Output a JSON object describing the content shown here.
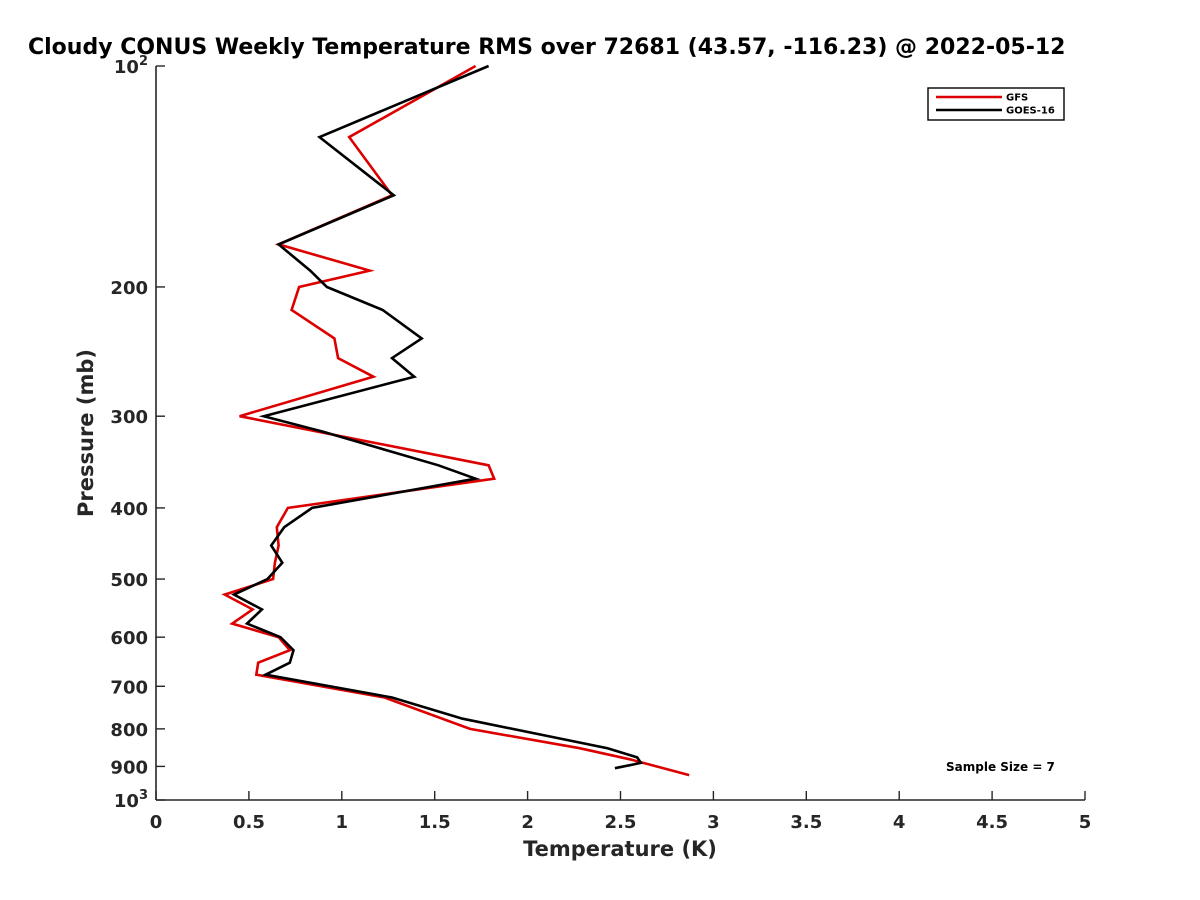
{
  "chart_data": {
    "type": "line",
    "orientation": "vertical-profile",
    "title": "Cloudy CONUS Weekly Temperature RMS over 72681 (43.57, -116.23) @ 2022-05-12",
    "xlabel": "Temperature (K)",
    "ylabel": "Pressure (mb)",
    "xlim": [
      0,
      5
    ],
    "ylim": [
      100,
      1000
    ],
    "yscale": "log",
    "y_reversed": true,
    "xticks": [
      {
        "value": 0,
        "label": "0"
      },
      {
        "value": 0.5,
        "label": "0.5"
      },
      {
        "value": 1,
        "label": "1"
      },
      {
        "value": 1.5,
        "label": "1.5"
      },
      {
        "value": 2,
        "label": "2"
      },
      {
        "value": 2.5,
        "label": "2.5"
      },
      {
        "value": 3,
        "label": "3"
      },
      {
        "value": 3.5,
        "label": "3.5"
      },
      {
        "value": 4,
        "label": "4"
      },
      {
        "value": 4.5,
        "label": "4.5"
      },
      {
        "value": 5,
        "label": "5"
      }
    ],
    "yticks": [
      {
        "value": 100,
        "base": "10",
        "exp": "2"
      },
      {
        "value": 200,
        "label": "200"
      },
      {
        "value": 300,
        "label": "300"
      },
      {
        "value": 400,
        "label": "400"
      },
      {
        "value": 500,
        "label": "500"
      },
      {
        "value": 600,
        "label": "600"
      },
      {
        "value": 700,
        "label": "700"
      },
      {
        "value": 800,
        "label": "800"
      },
      {
        "value": 900,
        "label": "900"
      },
      {
        "value": 1000,
        "base": "10",
        "exp": "3"
      }
    ],
    "grid": false,
    "legend_position": "top-right",
    "annotation": "Sample Size = 7",
    "series": [
      {
        "name": "GFS",
        "color": "#dd0000",
        "points": [
          [
            1.72,
            100
          ],
          [
            1.04,
            125
          ],
          [
            1.27,
            150
          ],
          [
            0.66,
            175
          ],
          [
            1.15,
            190
          ],
          [
            0.77,
            200
          ],
          [
            0.73,
            215
          ],
          [
            0.96,
            235
          ],
          [
            0.98,
            250
          ],
          [
            1.17,
            265
          ],
          [
            0.45,
            300
          ],
          [
            1.79,
            350
          ],
          [
            1.82,
            365
          ],
          [
            0.71,
            400
          ],
          [
            0.65,
            425
          ],
          [
            0.66,
            450
          ],
          [
            0.64,
            475
          ],
          [
            0.63,
            500
          ],
          [
            0.37,
            525
          ],
          [
            0.52,
            550
          ],
          [
            0.41,
            575
          ],
          [
            0.66,
            600
          ],
          [
            0.72,
            625
          ],
          [
            0.55,
            650
          ],
          [
            0.54,
            675
          ],
          [
            1.23,
            725
          ],
          [
            1.69,
            800
          ],
          [
            2.28,
            850
          ],
          [
            2.55,
            880
          ],
          [
            2.87,
            925
          ]
        ]
      },
      {
        "name": "GOES-16",
        "color": "#000000",
        "points": [
          [
            1.79,
            100
          ],
          [
            0.88,
            125
          ],
          [
            1.28,
            150
          ],
          [
            0.66,
            175
          ],
          [
            0.83,
            190
          ],
          [
            0.92,
            200
          ],
          [
            1.22,
            215
          ],
          [
            1.43,
            235
          ],
          [
            1.27,
            250
          ],
          [
            1.39,
            265
          ],
          [
            0.58,
            300
          ],
          [
            0.9,
            315
          ],
          [
            1.52,
            350
          ],
          [
            1.72,
            365
          ],
          [
            0.84,
            400
          ],
          [
            0.69,
            425
          ],
          [
            0.62,
            450
          ],
          [
            0.68,
            475
          ],
          [
            0.6,
            500
          ],
          [
            0.42,
            525
          ],
          [
            0.57,
            550
          ],
          [
            0.49,
            575
          ],
          [
            0.67,
            600
          ],
          [
            0.74,
            625
          ],
          [
            0.72,
            650
          ],
          [
            0.59,
            675
          ],
          [
            1.27,
            725
          ],
          [
            1.65,
            775
          ],
          [
            2.43,
            850
          ],
          [
            2.59,
            875
          ],
          [
            2.61,
            890
          ],
          [
            2.47,
            905
          ]
        ]
      }
    ]
  }
}
